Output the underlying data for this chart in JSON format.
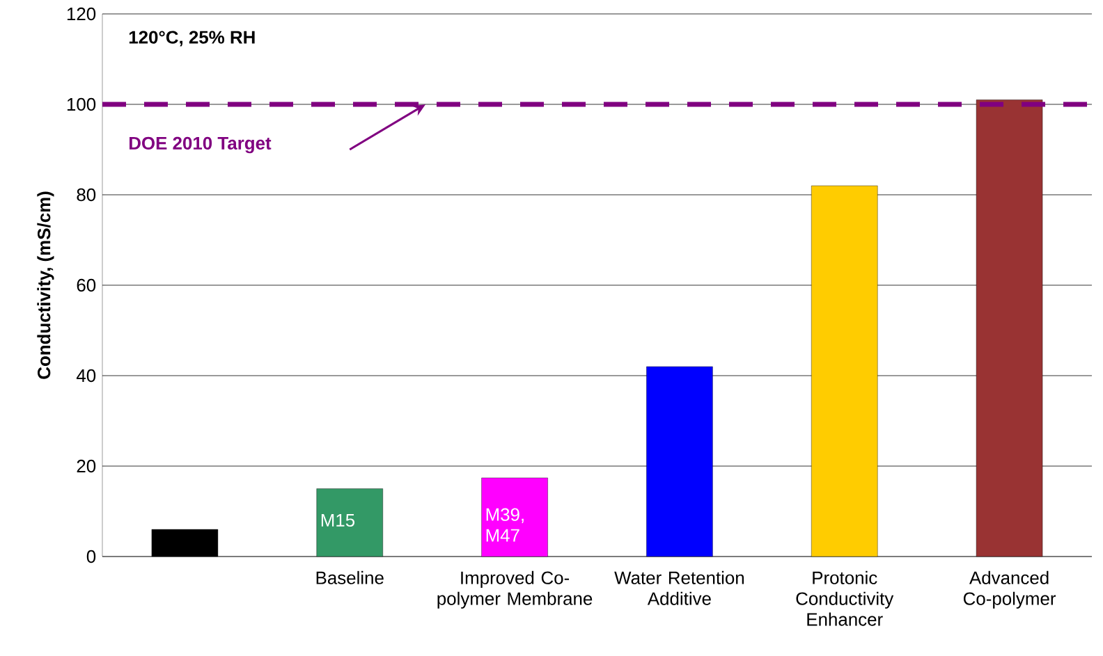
{
  "chart_data": {
    "type": "bar",
    "title": "120°C, 25% RH",
    "ylabel": "Conductivity, (mS/cm)",
    "categories": [
      null,
      "Baseline",
      "Improved Co-polymer Membrane",
      "Water Retention Additive",
      "Protonic Conductivity Enhancer",
      "Advanced Co-polymer"
    ],
    "values": [
      6,
      15,
      17.4,
      42,
      82,
      101
    ],
    "colors": [
      "#000000",
      "#339966",
      "#ff00ff",
      "#0000ff",
      "#ffcc00",
      "#993333"
    ],
    "ylim": [
      0,
      120
    ],
    "yticks": [
      0,
      20,
      40,
      60,
      80,
      100,
      120
    ],
    "grid": "y",
    "ref_lines": [
      {
        "axis": "y",
        "value": 100,
        "label": "DOE 2010 Target",
        "color": "#800080",
        "line_style": "dashed"
      }
    ],
    "annotations": [
      "M15",
      "M39, M47"
    ]
  }
}
